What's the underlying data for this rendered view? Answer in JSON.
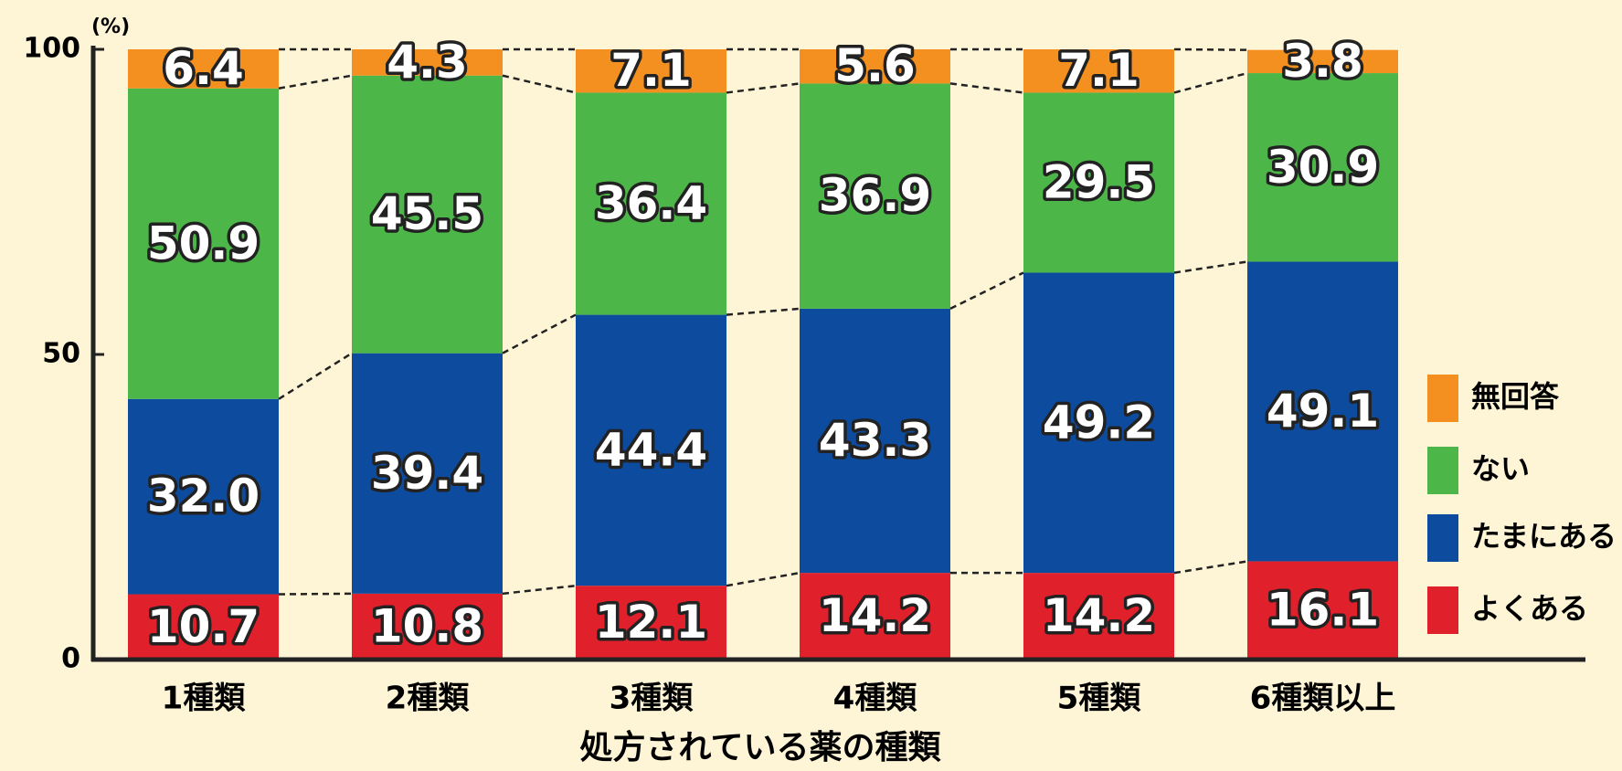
{
  "chart_data": {
    "type": "stacked_bar",
    "categories": [
      "1種類",
      "2種類",
      "3種類",
      "4種類",
      "5種類",
      "6種類以上"
    ],
    "series": [
      {
        "name": "よくある",
        "color": "#e0202a",
        "values": [
          10.7,
          10.8,
          12.1,
          14.2,
          14.2,
          16.1
        ],
        "value_labels": [
          "10.7",
          "10.8",
          "12.1",
          "14.2",
          "14.2",
          "16.1"
        ]
      },
      {
        "name": "たまにある",
        "color": "#0d4b9e",
        "values": [
          32.0,
          39.4,
          44.4,
          43.3,
          49.2,
          49.1
        ],
        "value_labels": [
          "32.0",
          "39.4",
          "44.4",
          "43.3",
          "49.2",
          "49.1"
        ]
      },
      {
        "name": "ない",
        "color": "#4cb748",
        "values": [
          50.9,
          45.5,
          36.4,
          36.9,
          29.5,
          30.9
        ],
        "value_labels": [
          "50.9",
          "45.5",
          "36.4",
          "36.9",
          "29.5",
          "30.9"
        ]
      },
      {
        "name": "無回答",
        "color": "#f39020",
        "values": [
          6.4,
          4.3,
          7.1,
          5.6,
          7.1,
          3.8
        ],
        "value_labels": [
          "6.4",
          "4.3",
          "7.1",
          "5.6",
          "7.1",
          "3.8"
        ]
      }
    ],
    "y_unit": "(%)",
    "x_label": "処方されている薬の種類",
    "ylim": [
      0,
      100
    ],
    "yticks": [
      0,
      50,
      100
    ]
  }
}
